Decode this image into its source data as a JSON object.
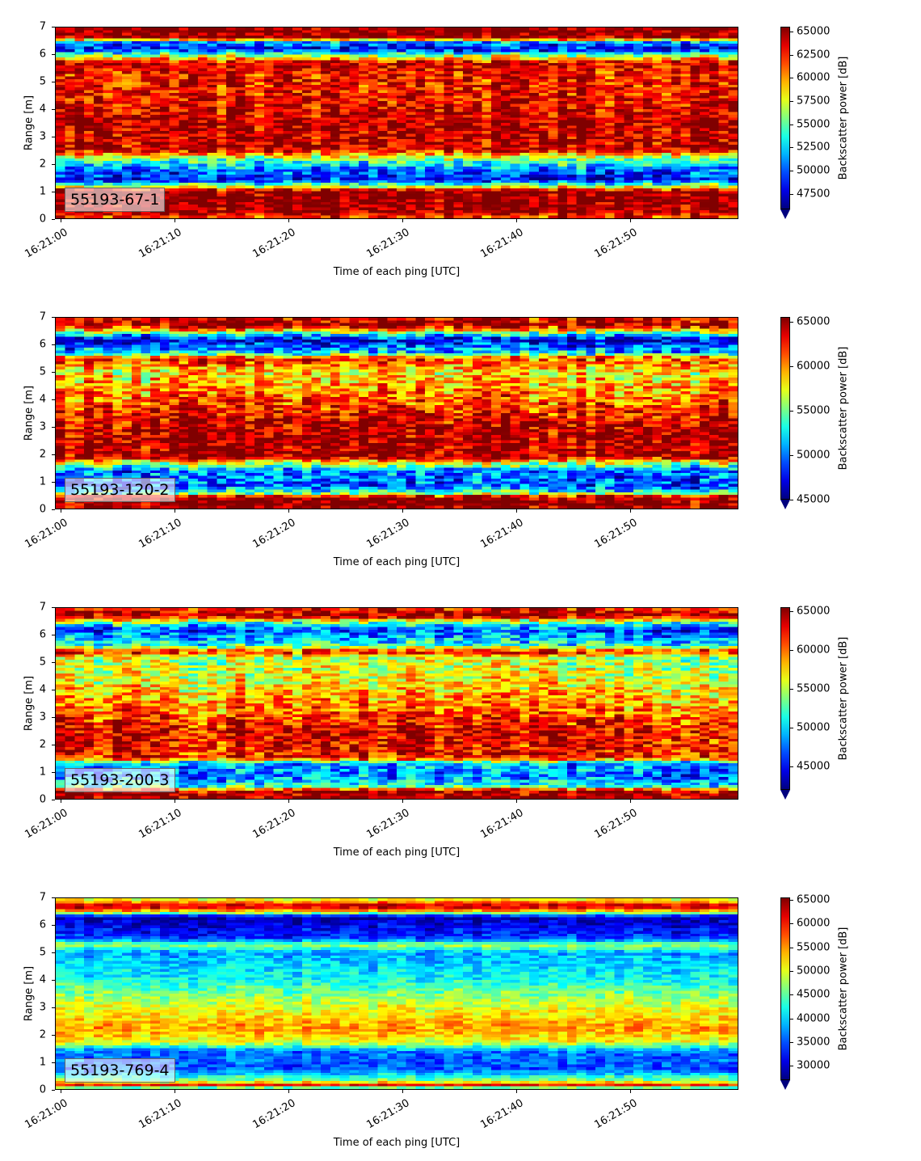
{
  "chart_data": [
    {
      "type": "heatmap",
      "label": "55193-67-1",
      "xlabel": "Time of each ping [UTC]",
      "ylabel": "Range [m]",
      "colorbar_label": "Backscatter power [dB]",
      "colormap": "jet",
      "x_ticks": [
        "16:21:00",
        "16:21:10",
        "16:21:20",
        "16:21:30",
        "16:21:40",
        "16:21:50"
      ],
      "x_range": [
        "16:20:59.5",
        "16:21:59.6"
      ],
      "y_ticks": [
        0,
        1,
        2,
        3,
        4,
        5,
        6,
        7
      ],
      "y_range": [
        0,
        7
      ],
      "color_ticks": [
        47500,
        50000,
        52500,
        55000,
        57500,
        60000,
        62500,
        65000
      ],
      "color_range": [
        45800,
        65535
      ],
      "profile": [
        {
          "y": 0.0,
          "v": 62000
        },
        {
          "y": 0.3,
          "v": 65500
        },
        {
          "y": 1.0,
          "v": 65500
        },
        {
          "y": 1.15,
          "v": 58000
        },
        {
          "y": 1.4,
          "v": 48500
        },
        {
          "y": 1.8,
          "v": 50500
        },
        {
          "y": 2.2,
          "v": 56000
        },
        {
          "y": 2.5,
          "v": 64000
        },
        {
          "y": 3.5,
          "v": 64500
        },
        {
          "y": 4.5,
          "v": 63000
        },
        {
          "y": 5.3,
          "v": 63000
        },
        {
          "y": 5.7,
          "v": 64500
        },
        {
          "y": 6.0,
          "v": 55000
        },
        {
          "y": 6.2,
          "v": 48000
        },
        {
          "y": 6.5,
          "v": 52000
        },
        {
          "y": 6.6,
          "v": 65500
        },
        {
          "y": 7.0,
          "v": 65500
        }
      ],
      "noise": 6000
    },
    {
      "type": "heatmap",
      "label": "55193-120-2",
      "xlabel": "Time of each ping [UTC]",
      "ylabel": "Range [m]",
      "colorbar_label": "Backscatter power [dB]",
      "colormap": "jet",
      "x_ticks": [
        "16:21:00",
        "16:21:10",
        "16:21:20",
        "16:21:30",
        "16:21:40",
        "16:21:50"
      ],
      "x_range": [
        "16:20:59.5",
        "16:21:59.6"
      ],
      "y_ticks": [
        0,
        1,
        2,
        3,
        4,
        5,
        6,
        7
      ],
      "y_range": [
        0,
        7
      ],
      "color_ticks": [
        45000,
        50000,
        55000,
        60000,
        65000
      ],
      "color_range": [
        45000,
        65535
      ],
      "profile": [
        {
          "y": 0.0,
          "v": 65500
        },
        {
          "y": 0.4,
          "v": 65500
        },
        {
          "y": 0.55,
          "v": 55000
        },
        {
          "y": 0.8,
          "v": 49000
        },
        {
          "y": 1.4,
          "v": 50000
        },
        {
          "y": 1.7,
          "v": 58000
        },
        {
          "y": 1.9,
          "v": 65000
        },
        {
          "y": 3.0,
          "v": 64500
        },
        {
          "y": 4.0,
          "v": 61000
        },
        {
          "y": 5.0,
          "v": 58000
        },
        {
          "y": 5.5,
          "v": 62000
        },
        {
          "y": 5.7,
          "v": 52000
        },
        {
          "y": 6.2,
          "v": 46500
        },
        {
          "y": 6.5,
          "v": 57000
        },
        {
          "y": 6.7,
          "v": 65000
        },
        {
          "y": 7.0,
          "v": 63000
        }
      ],
      "noise": 7000
    },
    {
      "type": "heatmap",
      "label": "55193-200-3",
      "xlabel": "Time of each ping [UTC]",
      "ylabel": "Range [m]",
      "colorbar_label": "Backscatter power [dB]",
      "colormap": "jet",
      "x_ticks": [
        "16:21:00",
        "16:21:10",
        "16:21:20",
        "16:21:30",
        "16:21:40",
        "16:21:50"
      ],
      "x_range": [
        "16:20:59.5",
        "16:21:59.6"
      ],
      "y_ticks": [
        0,
        1,
        2,
        3,
        4,
        5,
        6,
        7
      ],
      "y_range": [
        0,
        7
      ],
      "color_ticks": [
        45000,
        50000,
        55000,
        60000,
        65000
      ],
      "color_range": [
        42000,
        65535
      ],
      "profile": [
        {
          "y": 0.0,
          "v": 65500
        },
        {
          "y": 0.3,
          "v": 64000
        },
        {
          "y": 0.45,
          "v": 52000
        },
        {
          "y": 0.8,
          "v": 47500
        },
        {
          "y": 1.3,
          "v": 49000
        },
        {
          "y": 1.5,
          "v": 62000
        },
        {
          "y": 2.5,
          "v": 63000
        },
        {
          "y": 3.5,
          "v": 59000
        },
        {
          "y": 4.5,
          "v": 56000
        },
        {
          "y": 5.2,
          "v": 55000
        },
        {
          "y": 5.4,
          "v": 63000
        },
        {
          "y": 5.6,
          "v": 52000
        },
        {
          "y": 6.2,
          "v": 46000
        },
        {
          "y": 6.5,
          "v": 54000
        },
        {
          "y": 6.7,
          "v": 65000
        },
        {
          "y": 7.0,
          "v": 62000
        }
      ],
      "noise": 7500
    },
    {
      "type": "heatmap",
      "label": "55193-769-4",
      "xlabel": "Time of each ping [UTC]",
      "ylabel": "Range [m]",
      "colorbar_label": "Backscatter power [dB]",
      "colormap": "jet",
      "x_ticks": [
        "16:21:00",
        "16:21:10",
        "16:21:20",
        "16:21:30",
        "16:21:40",
        "16:21:50"
      ],
      "x_range": [
        "16:20:59.5",
        "16:21:59.6"
      ],
      "y_ticks": [
        0,
        1,
        2,
        3,
        4,
        5,
        6,
        7
      ],
      "y_range": [
        0,
        7
      ],
      "color_ticks": [
        30000,
        35000,
        40000,
        45000,
        50000,
        55000,
        60000,
        65000
      ],
      "color_range": [
        27000,
        65535
      ],
      "profile": [
        {
          "y": 0.0,
          "v": 38000
        },
        {
          "y": 0.15,
          "v": 60000
        },
        {
          "y": 0.3,
          "v": 47000
        },
        {
          "y": 0.7,
          "v": 35000
        },
        {
          "y": 1.4,
          "v": 36000
        },
        {
          "y": 1.7,
          "v": 50000
        },
        {
          "y": 2.2,
          "v": 55000
        },
        {
          "y": 3.0,
          "v": 50000
        },
        {
          "y": 4.0,
          "v": 42000
        },
        {
          "y": 5.0,
          "v": 38000
        },
        {
          "y": 5.3,
          "v": 48000
        },
        {
          "y": 5.5,
          "v": 34000
        },
        {
          "y": 6.3,
          "v": 28500
        },
        {
          "y": 6.5,
          "v": 52000
        },
        {
          "y": 6.7,
          "v": 64000
        },
        {
          "y": 7.0,
          "v": 48000
        }
      ],
      "noise": 6500
    }
  ]
}
